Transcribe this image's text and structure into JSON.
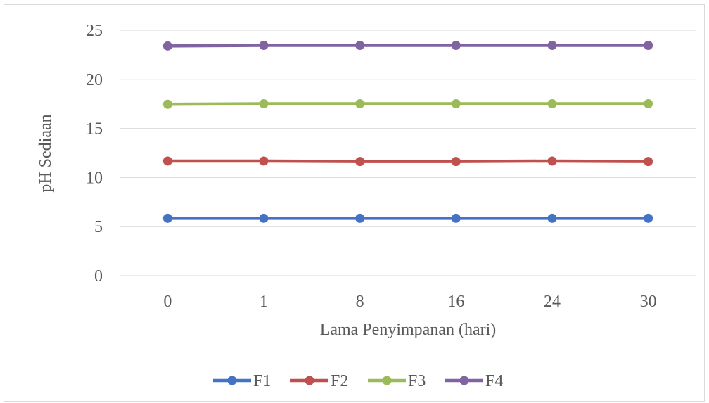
{
  "chart_data": {
    "type": "line",
    "title": "",
    "xlabel": "Lama Penyimpanan (hari)",
    "ylabel": "pH Sediaan",
    "categories": [
      "0",
      "1",
      "8",
      "16",
      "24",
      "30"
    ],
    "ylim": [
      0,
      25
    ],
    "yticks": [
      "0",
      "5",
      "10",
      "15",
      "20",
      "25"
    ],
    "grid": true,
    "legend_position": "bottom",
    "series": [
      {
        "name": "F1",
        "color": "#4472c4",
        "values": [
          5.85,
          5.85,
          5.85,
          5.85,
          5.85,
          5.85
        ]
      },
      {
        "name": "F2",
        "color": "#c0504d",
        "values": [
          11.68,
          11.68,
          11.63,
          11.63,
          11.68,
          11.63
        ]
      },
      {
        "name": "F3",
        "color": "#9bbb59",
        "values": [
          17.46,
          17.51,
          17.51,
          17.51,
          17.51,
          17.51
        ]
      },
      {
        "name": "F4",
        "color": "#8064a2",
        "values": [
          23.4,
          23.46,
          23.46,
          23.46,
          23.46,
          23.46
        ]
      }
    ]
  }
}
